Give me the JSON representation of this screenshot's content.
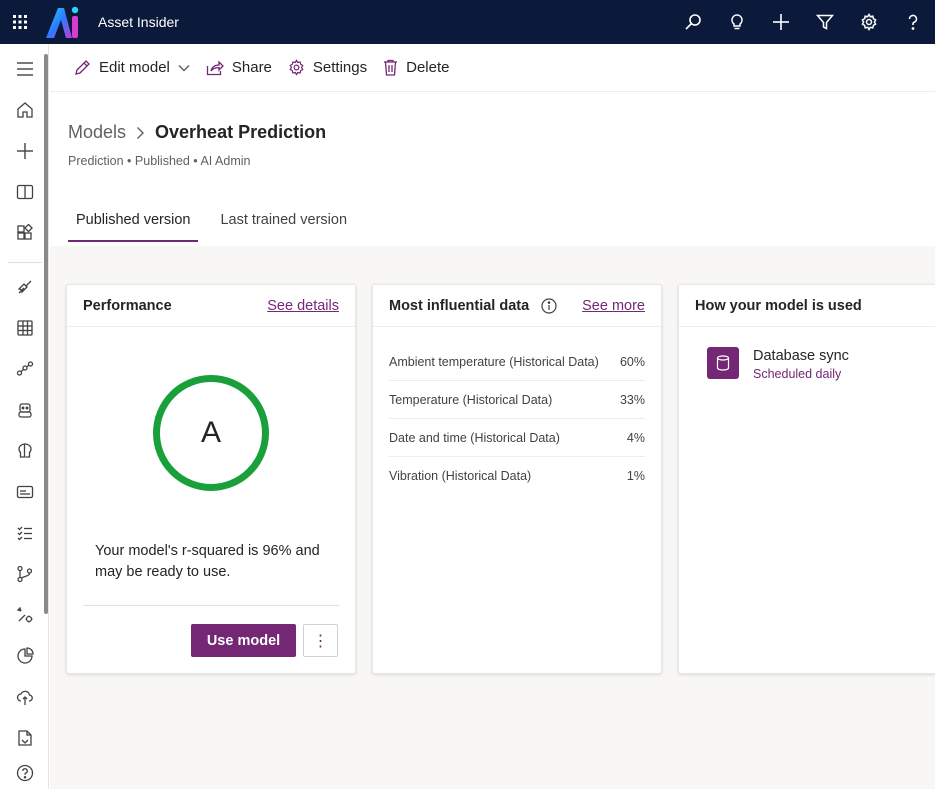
{
  "app": {
    "title": "Asset Insider"
  },
  "topbar": {
    "icons": [
      "waffle-icon",
      "search-icon",
      "lightbulb-icon",
      "add-icon",
      "filter-icon",
      "gear-icon",
      "help-icon"
    ]
  },
  "rail": {
    "icons": [
      "hamburger-icon",
      "home-icon",
      "create-icon",
      "learn-icon",
      "apps-icon",
      "flows-icon",
      "tables-icon",
      "connections-icon",
      "chatbots-icon",
      "ai-models-icon",
      "solutions-icon",
      "process-icon",
      "git-icon",
      "settings-icon",
      "insights-icon",
      "cloud-icon",
      "files-icon",
      "help-icon"
    ]
  },
  "cmdbar": {
    "edit": "Edit model",
    "share": "Share",
    "settings": "Settings",
    "delete": "Delete"
  },
  "header": {
    "breadcrumb_root": "Models",
    "breadcrumb_current": "Overheat Prediction",
    "meta": "Prediction • Published • AI Admin",
    "tabs": [
      "Published version",
      "Last trained version"
    ]
  },
  "performance": {
    "title": "Performance",
    "link": "See details",
    "grade": "A",
    "message": "Your model's r-squared is 96% and may be ready to use.",
    "use_button": "Use model",
    "more_button": "⋮"
  },
  "influential": {
    "title": "Most influential data",
    "link": "See more",
    "rows": [
      {
        "name": "Ambient temperature (Historical Data)",
        "value": "60%"
      },
      {
        "name": "Temperature (Historical Data)",
        "value": "33%"
      },
      {
        "name": "Date and time (Historical Data)",
        "value": "4%"
      },
      {
        "name": "Vibration (Historical Data)",
        "value": "1%"
      }
    ]
  },
  "usage": {
    "title": "How your model is used",
    "item_name": "Database sync",
    "item_schedule": "Scheduled daily"
  },
  "colors": {
    "topbar": "#0b1a3a",
    "accent": "#742774",
    "grade_ring": "#1aa03a"
  }
}
